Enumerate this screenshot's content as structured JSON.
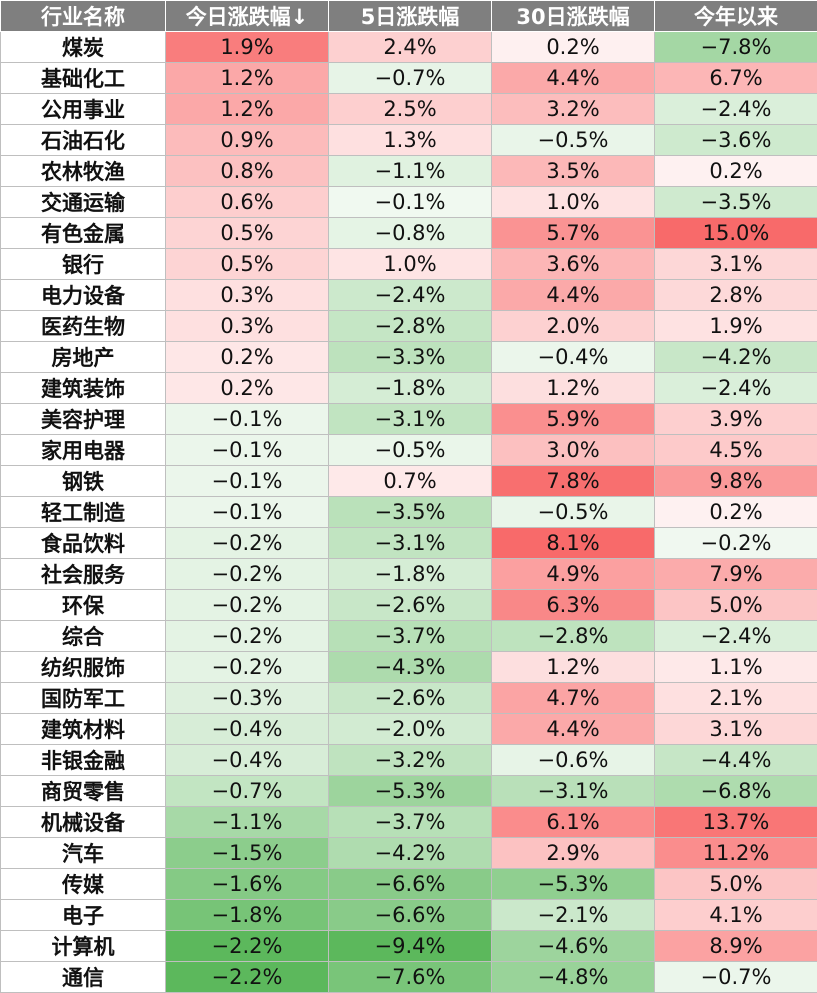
{
  "chart_data": {
    "type": "table",
    "columns": [
      "行业名称",
      "今日涨跌幅↓",
      "5日涨跌幅",
      "30日涨跌幅",
      "今年以来"
    ],
    "rows": [
      {
        "name": "煤炭",
        "values": [
          "1.9%",
          "2.4%",
          "0.2%",
          "−7.8%"
        ]
      },
      {
        "name": "基础化工",
        "values": [
          "1.2%",
          "−0.7%",
          "4.4%",
          "6.7%"
        ]
      },
      {
        "name": "公用事业",
        "values": [
          "1.2%",
          "2.5%",
          "3.2%",
          "−2.4%"
        ]
      },
      {
        "name": "石油石化",
        "values": [
          "0.9%",
          "1.3%",
          "−0.5%",
          "−3.6%"
        ]
      },
      {
        "name": "农林牧渔",
        "values": [
          "0.8%",
          "−1.1%",
          "3.5%",
          "0.2%"
        ]
      },
      {
        "name": "交通运输",
        "values": [
          "0.6%",
          "−0.1%",
          "1.0%",
          "−3.5%"
        ]
      },
      {
        "name": "有色金属",
        "values": [
          "0.5%",
          "−0.8%",
          "5.7%",
          "15.0%"
        ]
      },
      {
        "name": "银行",
        "values": [
          "0.5%",
          "1.0%",
          "3.6%",
          "3.1%"
        ]
      },
      {
        "name": "电力设备",
        "values": [
          "0.3%",
          "−2.4%",
          "4.4%",
          "2.8%"
        ]
      },
      {
        "name": "医药生物",
        "values": [
          "0.3%",
          "−2.8%",
          "2.0%",
          "1.9%"
        ]
      },
      {
        "name": "房地产",
        "values": [
          "0.2%",
          "−3.3%",
          "−0.4%",
          "−4.2%"
        ]
      },
      {
        "name": "建筑装饰",
        "values": [
          "0.2%",
          "−1.8%",
          "1.2%",
          "−2.4%"
        ]
      },
      {
        "name": "美容护理",
        "values": [
          "−0.1%",
          "−3.1%",
          "5.9%",
          "3.9%"
        ]
      },
      {
        "name": "家用电器",
        "values": [
          "−0.1%",
          "−0.5%",
          "3.0%",
          "4.5%"
        ]
      },
      {
        "name": "钢铁",
        "values": [
          "−0.1%",
          "0.7%",
          "7.8%",
          "9.8%"
        ]
      },
      {
        "name": "轻工制造",
        "values": [
          "−0.1%",
          "−3.5%",
          "−0.5%",
          "0.2%"
        ]
      },
      {
        "name": "食品饮料",
        "values": [
          "−0.2%",
          "−3.1%",
          "8.1%",
          "−0.2%"
        ]
      },
      {
        "name": "社会服务",
        "values": [
          "−0.2%",
          "−1.8%",
          "4.9%",
          "7.9%"
        ]
      },
      {
        "name": "环保",
        "values": [
          "−0.2%",
          "−2.6%",
          "6.3%",
          "5.0%"
        ]
      },
      {
        "name": "综合",
        "values": [
          "−0.2%",
          "−3.7%",
          "−2.8%",
          "−2.4%"
        ]
      },
      {
        "name": "纺织服饰",
        "values": [
          "−0.2%",
          "−4.3%",
          "1.2%",
          "1.1%"
        ]
      },
      {
        "name": "国防军工",
        "values": [
          "−0.3%",
          "−2.6%",
          "4.7%",
          "2.1%"
        ]
      },
      {
        "name": "建筑材料",
        "values": [
          "−0.4%",
          "−2.0%",
          "4.4%",
          "3.1%"
        ]
      },
      {
        "name": "非银金融",
        "values": [
          "−0.4%",
          "−3.2%",
          "−0.6%",
          "−4.4%"
        ]
      },
      {
        "name": "商贸零售",
        "values": [
          "−0.7%",
          "−5.3%",
          "−3.1%",
          "−6.8%"
        ]
      },
      {
        "name": "机械设备",
        "values": [
          "−1.1%",
          "−3.7%",
          "6.1%",
          "13.7%"
        ]
      },
      {
        "name": "汽车",
        "values": [
          "−1.5%",
          "−4.2%",
          "2.9%",
          "11.2%"
        ]
      },
      {
        "name": "传媒",
        "values": [
          "−1.6%",
          "−6.6%",
          "−5.3%",
          "5.0%"
        ]
      },
      {
        "name": "电子",
        "values": [
          "−1.8%",
          "−6.6%",
          "−2.1%",
          "4.1%"
        ]
      },
      {
        "name": "计算机",
        "values": [
          "−2.2%",
          "−9.4%",
          "−4.6%",
          "8.9%"
        ]
      },
      {
        "name": "通信",
        "values": [
          "−2.2%",
          "−7.6%",
          "−4.8%",
          "−0.7%"
        ]
      }
    ],
    "colors": {
      "header_bg": "#7f7f7f",
      "header_text": "#ffffff",
      "positive_max": "#f86a6a",
      "negative_max": "#5cb85c",
      "neutral": "#ffffff"
    }
  }
}
